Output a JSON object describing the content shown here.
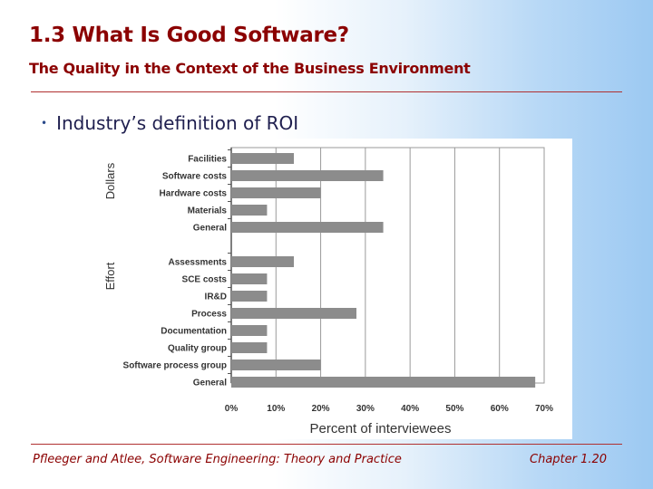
{
  "slide": {
    "title": "1.3 What Is Good Software?",
    "subtitle": "The Quality in the Context of the Business Environment",
    "bullet": "Industry’s definition of ROI",
    "footer_left": "Pfleeger and Atlee, Software Engineering: Theory and Practice",
    "footer_right": "Chapter 1.20"
  },
  "colors": {
    "title": "#8b0000",
    "bar": "#8c8c8c",
    "grid": "#9a9a9a"
  },
  "chart_data": {
    "type": "bar",
    "orientation": "horizontal",
    "xlabel": "Percent of interviewees",
    "xlim": [
      0,
      70
    ],
    "xticks": [
      "0%",
      "10%",
      "20%",
      "30%",
      "40%",
      "50%",
      "60%",
      "70%"
    ],
    "grid": true,
    "groups": [
      {
        "name": "Dollars",
        "categories": [
          "Facilities",
          "Software costs",
          "Hardware costs",
          "Materials",
          "General"
        ],
        "values": [
          14,
          34,
          20,
          8,
          34
        ]
      },
      {
        "name": "Effort",
        "categories": [
          "Assessments",
          "SCE costs",
          "IR&D",
          "Process",
          "Documentation",
          "Quality group",
          "Software process group",
          "General"
        ],
        "values": [
          14,
          8,
          8,
          28,
          8,
          8,
          20,
          68
        ]
      }
    ]
  }
}
